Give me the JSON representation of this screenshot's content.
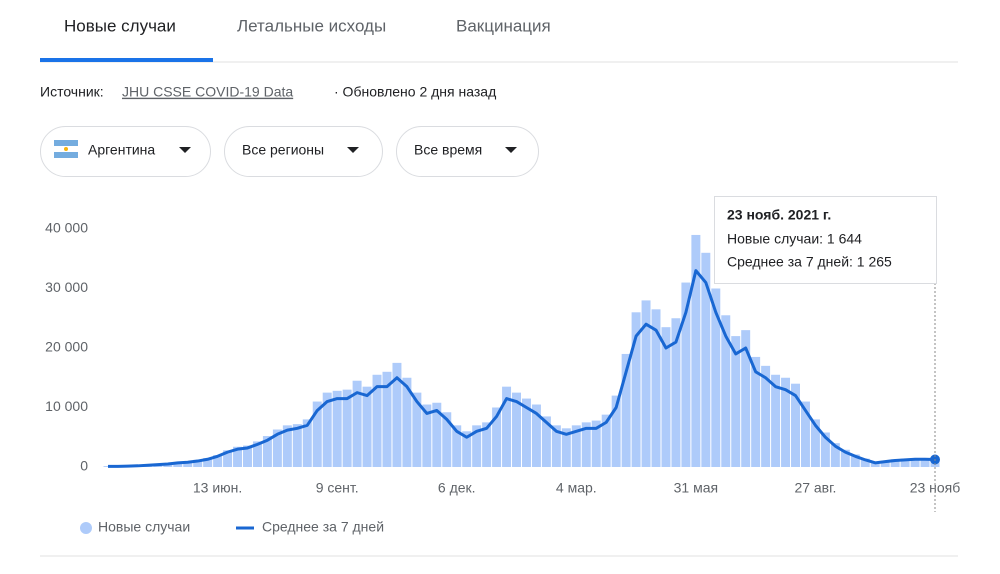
{
  "tabs": [
    "Новые случаи",
    "Летальные исходы",
    "Вакцинация"
  ],
  "source": {
    "label": "Источник:",
    "link": "JHU CSSE COVID-19 Data",
    "updated": "· Обновлено 2 дня назад"
  },
  "filters": [
    "Аргентина",
    "Все регионы",
    "Все время"
  ],
  "tooltip": {
    "title": "23 нояб. 2021 г.",
    "lines": [
      "Новые случаи: 1 644",
      "Среднее за 7 дней: 1 265"
    ]
  },
  "chart_data": {
    "type": "bar-line",
    "categories": [
      null,
      null,
      null,
      null,
      null,
      null,
      null,
      null,
      null,
      null,
      null,
      "13 июн.",
      null,
      null,
      null,
      null,
      null,
      null,
      null,
      null,
      null,
      null,
      null,
      "9 сент.",
      null,
      null,
      null,
      null,
      null,
      null,
      null,
      null,
      null,
      null,
      null,
      "6 дек.",
      null,
      null,
      null,
      null,
      null,
      null,
      null,
      null,
      null,
      null,
      null,
      "4 мар.",
      null,
      null,
      null,
      null,
      null,
      null,
      null,
      null,
      null,
      null,
      null,
      "31 мая",
      null,
      null,
      null,
      null,
      null,
      null,
      null,
      null,
      null,
      null,
      null,
      "27 авг.",
      null,
      null,
      null,
      null,
      null,
      null,
      null,
      null,
      null,
      null,
      null,
      "23 нояб"
    ],
    "series": [
      {
        "name": "Новые случаи",
        "color": "#aecbfa",
        "values": [
          150,
          120,
          200,
          250,
          400,
          500,
          600,
          800,
          900,
          1200,
          1500,
          2000,
          2800,
          3400,
          3600,
          4300,
          5200,
          6300,
          7000,
          7200,
          8000,
          11000,
          12500,
          12800,
          13000,
          14500,
          13500,
          15500,
          16000,
          17500,
          15000,
          12500,
          10500,
          10800,
          9200,
          7000,
          6000,
          7000,
          7500,
          10000,
          13500,
          12500,
          11500,
          10500,
          8500,
          7000,
          6500,
          7000,
          7500,
          7800,
          8800,
          12000,
          19000,
          26000,
          28000,
          26500,
          23500,
          25000,
          31000,
          39000,
          36000,
          30000,
          25500,
          22000,
          23000,
          18500,
          17000,
          15500,
          15000,
          14000,
          11000,
          8000,
          5800,
          4000,
          2900,
          2100,
          1400,
          850,
          1050,
          1300,
          1400,
          1500,
          1500,
          1644
        ]
      },
      {
        "name": "Среднее за 7 дней",
        "color": "#1967d2",
        "values": [
          100,
          100,
          150,
          200,
          300,
          400,
          500,
          700,
          800,
          1000,
          1300,
          1800,
          2500,
          3000,
          3200,
          3800,
          4500,
          5500,
          6200,
          6500,
          7000,
          9500,
          11000,
          11500,
          11500,
          12500,
          12000,
          13500,
          13500,
          15000,
          13500,
          11000,
          9000,
          9500,
          8000,
          6000,
          5000,
          6000,
          6500,
          8500,
          11500,
          11000,
          10000,
          9000,
          7500,
          6000,
          5500,
          6000,
          6500,
          6500,
          7500,
          10000,
          16000,
          22000,
          24000,
          23000,
          20000,
          21000,
          26000,
          33000,
          31000,
          26000,
          22000,
          19000,
          20000,
          16000,
          15000,
          13500,
          13000,
          12000,
          9500,
          7000,
          5000,
          3500,
          2500,
          1800,
          1200,
          700,
          900,
          1100,
          1200,
          1300,
          1300,
          1265
        ]
      }
    ],
    "ylim": [
      0,
      40000
    ],
    "yticks": [
      0,
      {
        "value": 10000,
        "label": "10 000"
      },
      {
        "value": 20000,
        "label": "20 000"
      },
      {
        "value": 30000,
        "label": "30 000"
      },
      {
        "value": 40000,
        "label": "40 000"
      }
    ]
  }
}
